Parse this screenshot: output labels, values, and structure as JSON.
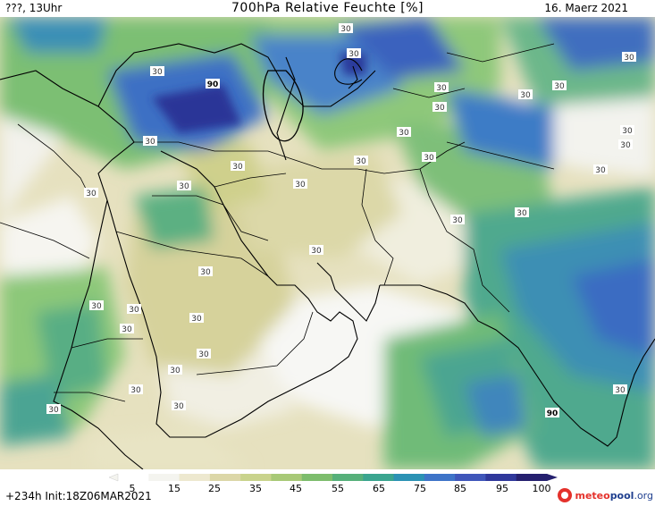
{
  "header": {
    "left": "???, 13Uhr",
    "center": "700hPa Relative Feuchte [%]",
    "right": "16. Maerz 2021"
  },
  "footer": {
    "left": "+234h Init:18Z06MAR2021"
  },
  "logo": {
    "part1": "meteo",
    "part2": "pool",
    "part3": ".org"
  },
  "colorbar": {
    "tick_labels": [
      "5",
      "15",
      "25",
      "35",
      "45",
      "55",
      "65",
      "75",
      "85",
      "95",
      "100"
    ],
    "colors": [
      "#ffffff",
      "#f4f4ef",
      "#ede8cf",
      "#dcd7a8",
      "#c9d38c",
      "#a8c977",
      "#7dbd6d",
      "#56b07a",
      "#3aa58f",
      "#2b92b4",
      "#3e74c8",
      "#3f56ba",
      "#2f389b",
      "#25206f"
    ]
  },
  "map": {
    "contour_labels": [
      "30",
      "30",
      "30",
      "30",
      "30",
      "30",
      "30",
      "30",
      "30",
      "30",
      "30",
      "30",
      "30",
      "30",
      "30",
      "30",
      "30",
      "30",
      "30",
      "30",
      "30",
      "30",
      "30",
      "30",
      "30",
      "30",
      "30",
      "30",
      "30",
      "30",
      "30",
      "30",
      "30",
      "90",
      "90"
    ]
  }
}
